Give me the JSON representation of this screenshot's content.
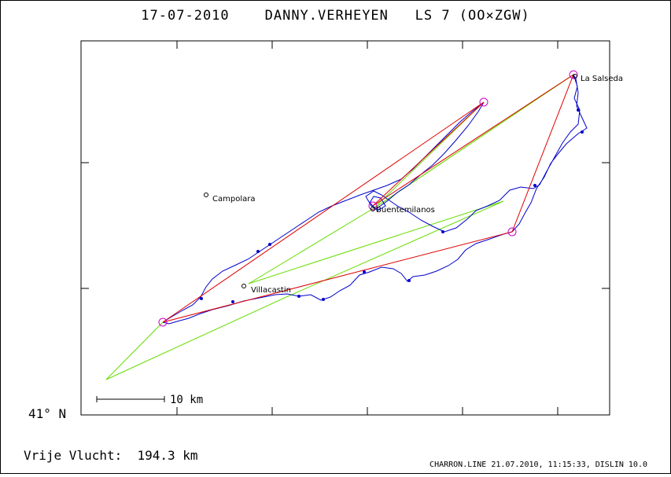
{
  "header": {
    "date": "17-07-2010",
    "pilot": "DANNY.VERHEYEN",
    "aircraft": "LS 7 (OO×ZGW)"
  },
  "axis": {
    "latitude_label": "41° N"
  },
  "scale_bar": {
    "label": "10 km"
  },
  "places": [
    {
      "name": "La Salseda"
    },
    {
      "name": "Campolara"
    },
    {
      "name": "Buentemilanos"
    },
    {
      "name": "Villacastin"
    }
  ],
  "summary": {
    "free_flight": "Vrije Vlucht:  194.3 km"
  },
  "footer": {
    "credit": "CHARRON.LINE 21.07.2010, 11:15:33, DISLIN 10.0"
  },
  "colors": {
    "track": "#0000cc",
    "task_legs": "#e00000",
    "free_flight_legs": "#66dd00",
    "turnpoints": "#cc00cc",
    "frame": "#000000"
  }
}
